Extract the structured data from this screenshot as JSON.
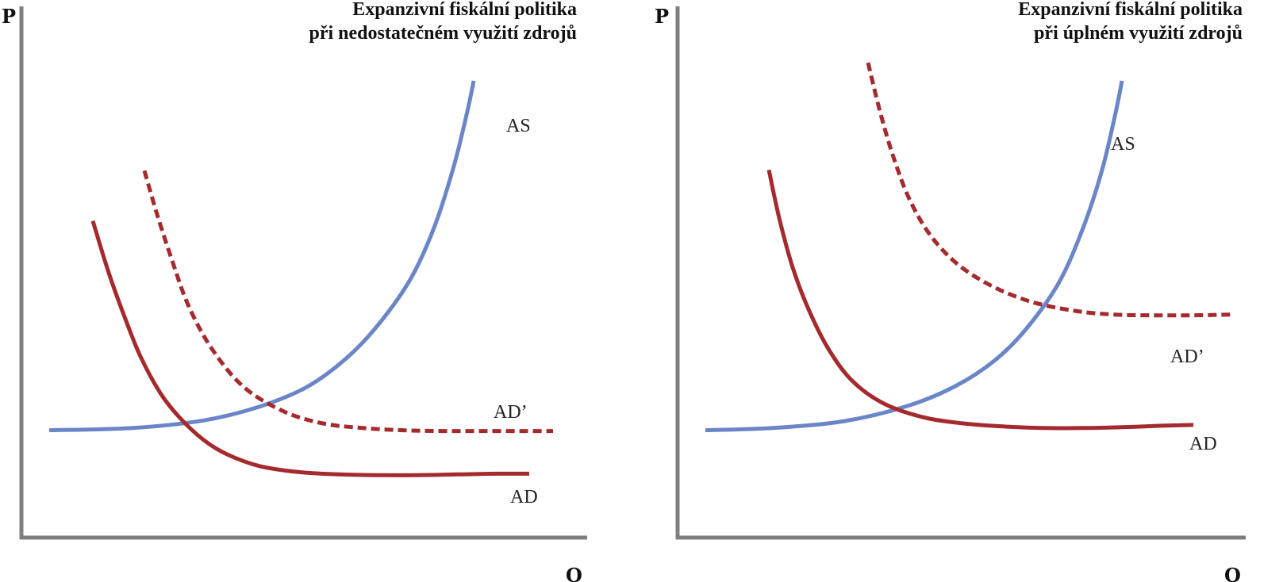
{
  "chart_data": [
    {
      "type": "line",
      "title_lines": [
        "Expanzivní fiskální politika",
        "při nedostatečném využití zdrojů"
      ],
      "ylabel": "P",
      "xlabel": "Q",
      "grid": false,
      "legend": "none",
      "series": [
        {
          "name": "AS",
          "role": "supply",
          "style": "solid",
          "color": "#6b86c8",
          "points": [
            [
              35,
              141
            ],
            [
              140,
              144
            ],
            [
              230,
              154
            ],
            [
              300,
              172
            ],
            [
              360,
              198
            ],
            [
              410,
              236
            ],
            [
              450,
              280
            ],
            [
              490,
              339
            ],
            [
              520,
              407
            ],
            [
              545,
              488
            ],
            [
              562,
              560
            ],
            [
              570,
              600
            ]
          ]
        },
        {
          "name": "AD",
          "role": "demand",
          "style": "solid",
          "color": "#a42a2e",
          "points": [
            [
              90,
              416
            ],
            [
              110,
              348
            ],
            [
              130,
              290
            ],
            [
              150,
              238
            ],
            [
              175,
              190
            ],
            [
              200,
              157
            ],
            [
              230,
              128
            ],
            [
              260,
              109
            ],
            [
              300,
              94
            ],
            [
              350,
              86
            ],
            [
              400,
              83
            ],
            [
              450,
              82
            ],
            [
              500,
              82
            ],
            [
              550,
              83
            ],
            [
              600,
              84
            ],
            [
              640,
              84
            ]
          ]
        },
        {
          "name": "AD’",
          "role": "demand-shifted",
          "style": "dashed",
          "color": "#a42a2e",
          "points": [
            [
              155,
              482
            ],
            [
              170,
              428
            ],
            [
              188,
              370
            ],
            [
              210,
              306
            ],
            [
              240,
              248
            ],
            [
              280,
              198
            ],
            [
              330,
              166
            ],
            [
              380,
              150
            ],
            [
              430,
              144
            ],
            [
              480,
              141
            ],
            [
              530,
              140
            ],
            [
              580,
              140
            ],
            [
              630,
              140
            ],
            [
              670,
              140
            ]
          ]
        }
      ]
    },
    {
      "type": "line",
      "title_lines": [
        "Expanzivní fiskální politika",
        "při úplném využití zdrojů"
      ],
      "ylabel": "P",
      "xlabel": "Q",
      "grid": false,
      "legend": "none",
      "series": [
        {
          "name": "AS",
          "role": "supply",
          "style": "solid",
          "color": "#6b86c8",
          "points": [
            [
              35,
              141
            ],
            [
              120,
              144
            ],
            [
              210,
              153
            ],
            [
              290,
              173
            ],
            [
              350,
              199
            ],
            [
              400,
              233
            ],
            [
              440,
              275
            ],
            [
              480,
              334
            ],
            [
              510,
              404
            ],
            [
              535,
              483
            ],
            [
              552,
              558
            ],
            [
              560,
              600
            ]
          ]
        },
        {
          "name": "AD",
          "role": "demand",
          "style": "solid",
          "color": "#a42a2e",
          "points": [
            [
              115,
              483
            ],
            [
              128,
              420
            ],
            [
              145,
              355
            ],
            [
              165,
              300
            ],
            [
              190,
              248
            ],
            [
              220,
              206
            ],
            [
              260,
              176
            ],
            [
              310,
              158
            ],
            [
              360,
              150
            ],
            [
              410,
              146
            ],
            [
              460,
              144
            ],
            [
              510,
              144
            ],
            [
              560,
              145
            ],
            [
              610,
              147
            ],
            [
              650,
              148
            ]
          ]
        },
        {
          "name": "AD’",
          "role": "demand-shifted",
          "style": "dashed",
          "color": "#a42a2e",
          "points": [
            [
              240,
              624
            ],
            [
              255,
              560
            ],
            [
              272,
              500
            ],
            [
              292,
              445
            ],
            [
              318,
              398
            ],
            [
              352,
              360
            ],
            [
              395,
              331
            ],
            [
              445,
              310
            ],
            [
              500,
              298
            ],
            [
              550,
              293
            ],
            [
              600,
              292
            ],
            [
              650,
              292
            ],
            [
              700,
              293
            ]
          ]
        }
      ]
    }
  ],
  "panels": [
    {
      "y_axis_label": "P",
      "x_axis_label": "Q",
      "title_line1": "Expanzivní fiskální politika",
      "title_line2": "při nedostatečném využití zdrojů",
      "label_as": "AS",
      "label_ad": "AD",
      "label_ad_shift": "AD’"
    },
    {
      "y_axis_label": "P",
      "x_axis_label": "Q",
      "title_line1": "Expanzivní fiskální politika",
      "title_line2": "při úplném využití zdrojů",
      "label_as": "AS",
      "label_ad": "AD",
      "label_ad_shift": "AD’"
    }
  ],
  "colors": {
    "axis": "#7f7f7f",
    "supply": "#6b86c8",
    "demand": "#a42a2e",
    "text": "#111111"
  }
}
